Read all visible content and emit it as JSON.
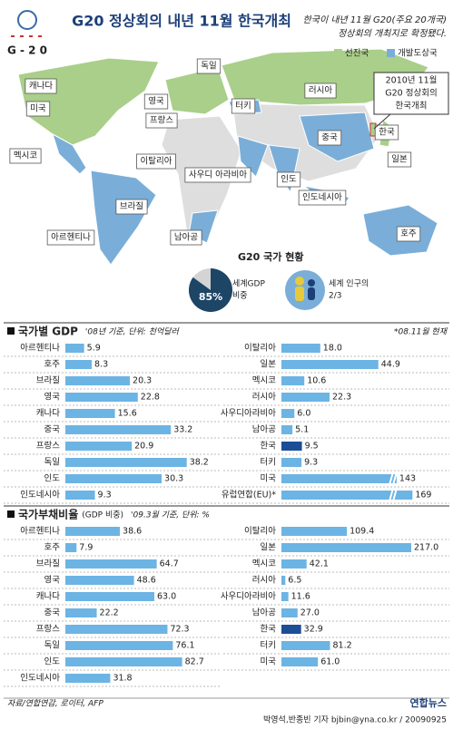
{
  "header": {
    "logo": "G - 2 0",
    "title": "G20 정상회의 내년 11월 한국개최",
    "subtitle_lines": [
      "한국이 내년 11월 G20(주요 20개국)",
      "정상회의 개최지로 확정됐다."
    ]
  },
  "map": {
    "legend": [
      {
        "name": "선진국",
        "color": "#a9cf8a"
      },
      {
        "name": "개발도상국",
        "color": "#7aaed8"
      }
    ],
    "countries": [
      "캐나다",
      "미국",
      "멕시코",
      "브라질",
      "아르헨티나",
      "영국",
      "프랑스",
      "독일",
      "이탈리아",
      "터키",
      "사우디 아라비아",
      "남아공",
      "러시아",
      "인도",
      "중국",
      "인도네시아",
      "일본",
      "호주",
      "한국"
    ],
    "callout": [
      "2010년 11월",
      "G20 정상회의",
      "한국개최"
    ]
  },
  "summary": {
    "title": "G20 국가 현황",
    "gdp": {
      "value": 85,
      "label": "85%",
      "text": [
        "세계GDP",
        "비중"
      ]
    },
    "population": [
      "세계 인구의",
      "2/3"
    ]
  },
  "chart_data": [
    {
      "type": "bar",
      "title": "국가별 GDP",
      "subtitle": "'08년 기준, 단위: 천억달러",
      "note": "*08.11월 현재",
      "color": "#6cb4e4",
      "highlight": "한국",
      "highlight_color": "#1b4e97",
      "panels": [
        {
          "categories": [
            "아르헨티나",
            "호주",
            "브라질",
            "영국",
            "캐나다",
            "중국",
            "프랑스",
            "독일",
            "인도",
            "인도네시아"
          ],
          "values": [
            5.9,
            8.3,
            20.3,
            22.8,
            15.6,
            33.2,
            20.9,
            38.2,
            30.3,
            9.3
          ],
          "value_labels": [
            "5.9",
            "8.3",
            "20.3",
            "22.8",
            "15.6",
            "33.2",
            "20.9",
            "38.2",
            "30.3",
            "9.3"
          ],
          "xlim": [
            0,
            40
          ]
        },
        {
          "categories": [
            "이탈리아",
            "일본",
            "멕시코",
            "러시아",
            "사우디아라비아",
            "남아공",
            "한국",
            "터키",
            "미국",
            "유럽연합(EU)*"
          ],
          "values": [
            18.0,
            44.9,
            10.6,
            22.3,
            6.0,
            5.1,
            9.5,
            9.3,
            143,
            169
          ],
          "value_labels": [
            "18.0",
            "44.9",
            "10.6",
            "22.3",
            "6.0",
            "5.1",
            "9.5",
            "9.3",
            "143",
            "169"
          ],
          "xlim": [
            0,
            170
          ],
          "axis_break": [
            50,
            140
          ]
        }
      ]
    },
    {
      "type": "bar",
      "title": "국가부채비율",
      "title_note": "(GDP 비중)",
      "subtitle": "'09.3월 기준, 단위: %",
      "color": "#6cb4e4",
      "highlight": "한국",
      "highlight_color": "#1b4e97",
      "panels": [
        {
          "categories": [
            "아르헨티나",
            "호주",
            "브라질",
            "영국",
            "캐나다",
            "중국",
            "프랑스",
            "독일",
            "인도",
            "인도네시아"
          ],
          "values": [
            38.6,
            7.9,
            64.7,
            48.6,
            63.0,
            22.2,
            72.3,
            76.1,
            82.7,
            31.8
          ],
          "value_labels": [
            "38.6",
            "7.9",
            "64.7",
            "48.6",
            "63.0",
            "22.2",
            "72.3",
            "76.1",
            "82.7",
            "31.8"
          ],
          "xlim": [
            0,
            90
          ]
        },
        {
          "categories": [
            "이탈리아",
            "일본",
            "멕시코",
            "러시아",
            "사우디아라비아",
            "남아공",
            "한국",
            "터키",
            "미국"
          ],
          "values": [
            109.4,
            217.0,
            42.1,
            6.5,
            11.6,
            27.0,
            32.9,
            81.2,
            61.0
          ],
          "value_labels": [
            "109.4",
            "217.0",
            "42.1",
            "6.5",
            "11.6",
            "27.0",
            "32.9",
            "81.2",
            "61.0"
          ],
          "xlim": [
            0,
            220
          ]
        }
      ]
    }
  ],
  "footer": {
    "source": "자료/연합연감, 로이터, AFP",
    "credit": "박영석,반종빈 기자 bjbin@yna.co.kr / 20090925",
    "logo": "연합뉴스"
  }
}
